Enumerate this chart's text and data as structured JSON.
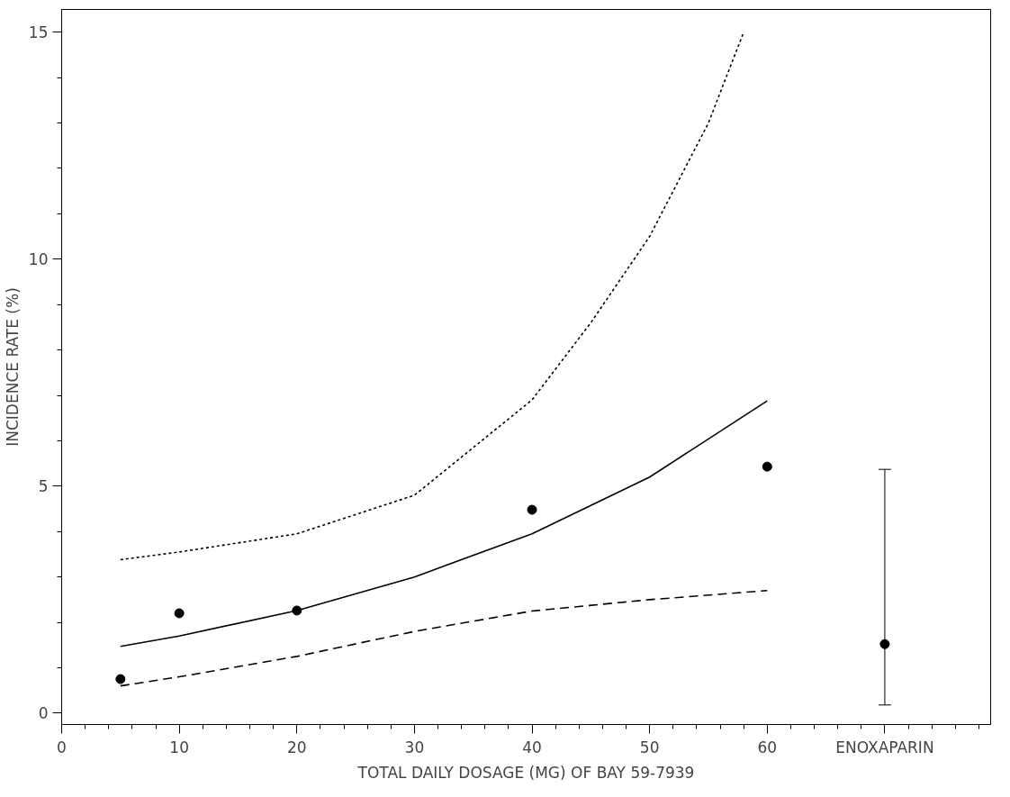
{
  "chart_data": {
    "type": "line",
    "xlabel": "TOTAL DAILY DOSAGE (MG) OF BAY 59-7939",
    "ylabel": "INCIDENCE RATE (%)",
    "xlim": [
      0,
      79
    ],
    "ylim": [
      -0.25,
      15.5
    ],
    "xticks": [
      0,
      10,
      20,
      30,
      40,
      50,
      60,
      {
        "value": 70,
        "label": "ENOXAPARIN"
      }
    ],
    "yticks": [
      0,
      5,
      10,
      15
    ],
    "grid": false,
    "series": [
      {
        "type": "scatter",
        "marker": "circle",
        "color": "#000000",
        "x": [
          5,
          10,
          20,
          40,
          60,
          70
        ],
        "values": [
          0.75,
          2.2,
          2.26,
          4.48,
          5.43,
          1.52
        ],
        "errors": [
          null,
          null,
          null,
          null,
          null,
          [
            0.18,
            5.37
          ]
        ]
      },
      {
        "line_style": "solid",
        "color": "#000000",
        "x": [
          5,
          10,
          20,
          30,
          40,
          50,
          60
        ],
        "values": [
          1.47,
          1.7,
          2.26,
          3.0,
          3.95,
          5.2,
          6.88
        ]
      },
      {
        "line_style": "dashed",
        "color": "#000000",
        "x": [
          5,
          10,
          20,
          30,
          40,
          50,
          60
        ],
        "values": [
          0.6,
          0.8,
          1.25,
          1.8,
          2.25,
          2.5,
          2.7
        ]
      },
      {
        "line_style": "dotted",
        "color": "#000000",
        "x": [
          5,
          10,
          20,
          30,
          40,
          45,
          50,
          55,
          58
        ],
        "values": [
          3.38,
          3.55,
          3.95,
          4.8,
          6.9,
          8.6,
          10.5,
          13.0,
          15.0
        ]
      }
    ]
  }
}
